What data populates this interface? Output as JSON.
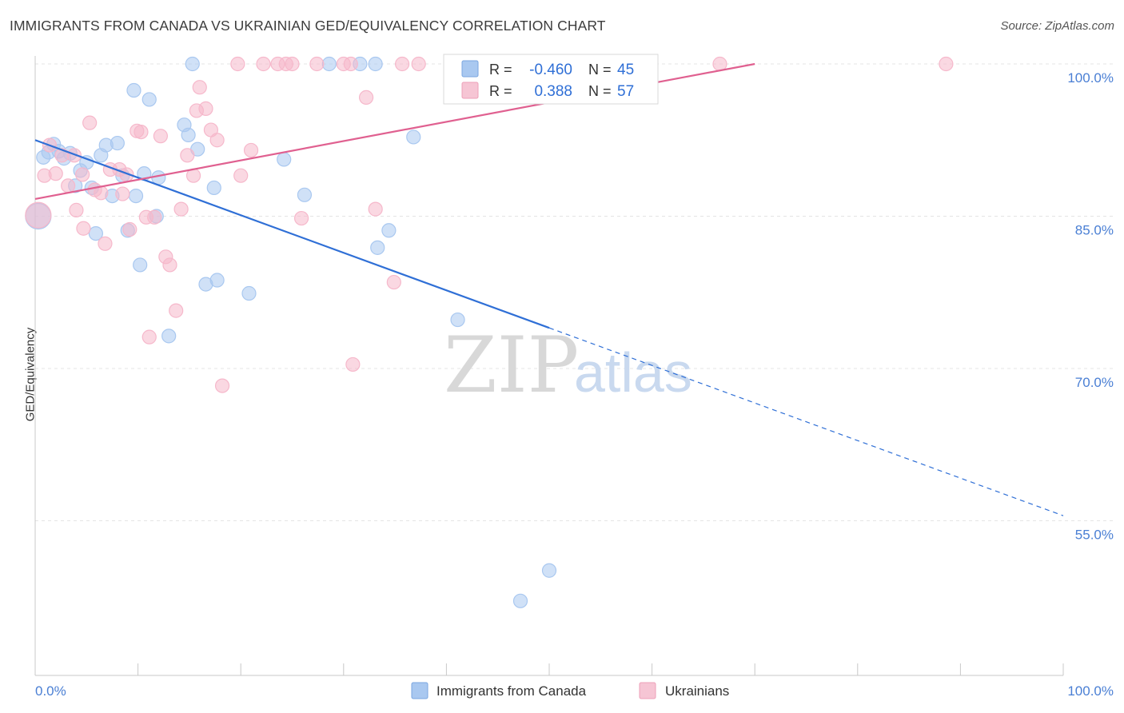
{
  "header": {
    "title": "IMMIGRANTS FROM CANADA VS UKRAINIAN GED/EQUIVALENCY CORRELATION CHART",
    "source": "Source: ZipAtlas.com"
  },
  "watermark": {
    "zip": "ZIP",
    "atlas": "atlas"
  },
  "stats_box": {
    "rows": [
      {
        "r_label": "R =",
        "r_value": "-0.460",
        "n_label": "N =",
        "n_value": "45",
        "color": "#a9c8f0"
      },
      {
        "r_label": "R =",
        "r_value": "0.388",
        "n_label": "N =",
        "n_value": "57",
        "color": "#f6b8cb"
      }
    ]
  },
  "chart_data": {
    "type": "scatter",
    "title": "IMMIGRANTS FROM CANADA VS UKRAINIAN GED/EQUIVALENCY CORRELATION CHART",
    "xlabel": "",
    "ylabel": "GED/Equivalency",
    "xlim": [
      0,
      100
    ],
    "ylim": [
      40,
      103
    ],
    "x_tick_labels": [
      "0.0%",
      "100.0%"
    ],
    "y_ticks": [
      55,
      70,
      85,
      100
    ],
    "y_tick_labels": [
      "55.0%",
      "70.0%",
      "85.0%",
      "100.0%"
    ],
    "grid": true,
    "legend_position": "bottom-center",
    "series": [
      {
        "name": "Immigrants from Canada",
        "color": "#a9c8f0",
        "line_color": "#2f6fd6",
        "points": [
          [
            0.3,
            85.0
          ],
          [
            0.8,
            90.8
          ],
          [
            1.3,
            91.3
          ],
          [
            1.8,
            92.1
          ],
          [
            2.3,
            91.4
          ],
          [
            2.8,
            90.7
          ],
          [
            3.4,
            91.2
          ],
          [
            3.9,
            88.0
          ],
          [
            4.4,
            89.5
          ],
          [
            5.0,
            90.3
          ],
          [
            5.5,
            87.8
          ],
          [
            5.9,
            83.3
          ],
          [
            6.4,
            91.0
          ],
          [
            6.9,
            92.0
          ],
          [
            7.5,
            87.0
          ],
          [
            8.0,
            92.2
          ],
          [
            8.5,
            89.0
          ],
          [
            9.0,
            83.6
          ],
          [
            9.6,
            97.4
          ],
          [
            9.8,
            87.0
          ],
          [
            10.2,
            80.2
          ],
          [
            10.6,
            89.2
          ],
          [
            11.1,
            96.5
          ],
          [
            12.0,
            88.8
          ],
          [
            11.8,
            85.0
          ],
          [
            13.0,
            73.2
          ],
          [
            14.5,
            94.0
          ],
          [
            14.9,
            93.0
          ],
          [
            15.3,
            100.0
          ],
          [
            15.8,
            91.6
          ],
          [
            16.6,
            78.3
          ],
          [
            17.4,
            87.8
          ],
          [
            17.7,
            78.7
          ],
          [
            20.8,
            77.4
          ],
          [
            24.2,
            90.6
          ],
          [
            26.2,
            87.1
          ],
          [
            28.6,
            100.0
          ],
          [
            31.6,
            100.0
          ],
          [
            33.1,
            100.0
          ],
          [
            33.3,
            81.9
          ],
          [
            34.4,
            83.6
          ],
          [
            36.8,
            92.8
          ],
          [
            41.1,
            74.8
          ],
          [
            47.2,
            47.1
          ],
          [
            50.0,
            50.1
          ]
        ],
        "trend": {
          "x0": 0.0,
          "y0": 92.5,
          "x1": 50.0,
          "y1": 74.0,
          "dashed_to_x": 100.0,
          "dashed_to_y": 55.5
        }
      },
      {
        "name": "Ukrainians",
        "color": "#f6b8cb",
        "line_color": "#e06090",
        "points": [
          [
            0.3,
            85.1
          ],
          [
            0.9,
            89.0
          ],
          [
            1.4,
            92.0
          ],
          [
            2.0,
            89.2
          ],
          [
            2.6,
            91.0
          ],
          [
            3.2,
            88.0
          ],
          [
            3.8,
            91.0
          ],
          [
            4.0,
            85.6
          ],
          [
            4.6,
            89.1
          ],
          [
            4.7,
            83.8
          ],
          [
            5.3,
            94.2
          ],
          [
            5.8,
            87.6
          ],
          [
            6.4,
            87.3
          ],
          [
            6.8,
            82.3
          ],
          [
            7.3,
            89.6
          ],
          [
            8.2,
            89.6
          ],
          [
            8.5,
            87.2
          ],
          [
            8.9,
            89.1
          ],
          [
            9.2,
            83.7
          ],
          [
            9.9,
            93.4
          ],
          [
            10.3,
            93.3
          ],
          [
            10.8,
            84.9
          ],
          [
            11.1,
            73.1
          ],
          [
            11.6,
            84.9
          ],
          [
            12.2,
            92.9
          ],
          [
            12.7,
            81.0
          ],
          [
            13.1,
            80.2
          ],
          [
            13.7,
            75.7
          ],
          [
            14.2,
            85.7
          ],
          [
            14.8,
            91.0
          ],
          [
            15.4,
            89.0
          ],
          [
            15.7,
            95.4
          ],
          [
            16.0,
            97.7
          ],
          [
            16.6,
            95.6
          ],
          [
            17.1,
            93.5
          ],
          [
            17.7,
            92.5
          ],
          [
            18.2,
            68.3
          ],
          [
            19.7,
            100.0
          ],
          [
            20.0,
            89.0
          ],
          [
            21.0,
            91.5
          ],
          [
            22.2,
            100.0
          ],
          [
            23.6,
            100.0
          ],
          [
            24.4,
            100.0
          ],
          [
            25.0,
            100.0
          ],
          [
            25.9,
            84.8
          ],
          [
            27.4,
            100.0
          ],
          [
            30.0,
            100.0
          ],
          [
            30.7,
            100.0
          ],
          [
            30.9,
            70.4
          ],
          [
            32.2,
            96.7
          ],
          [
            33.1,
            85.7
          ],
          [
            34.9,
            78.5
          ],
          [
            35.7,
            100.0
          ],
          [
            37.3,
            100.0
          ],
          [
            48.0,
            100.0
          ],
          [
            66.6,
            100.0
          ],
          [
            88.6,
            100.0
          ]
        ],
        "trend": {
          "x0": 0.0,
          "y0": 86.7,
          "x1": 70.0,
          "y1": 100.0
        }
      }
    ]
  },
  "legend": {
    "items": [
      {
        "label": "Immigrants from Canada",
        "color": "#a9c8f0",
        "border": "#7aa6e0"
      },
      {
        "label": "Ukrainians",
        "color": "#f6c5d4",
        "border": "#eda0b8"
      }
    ]
  }
}
